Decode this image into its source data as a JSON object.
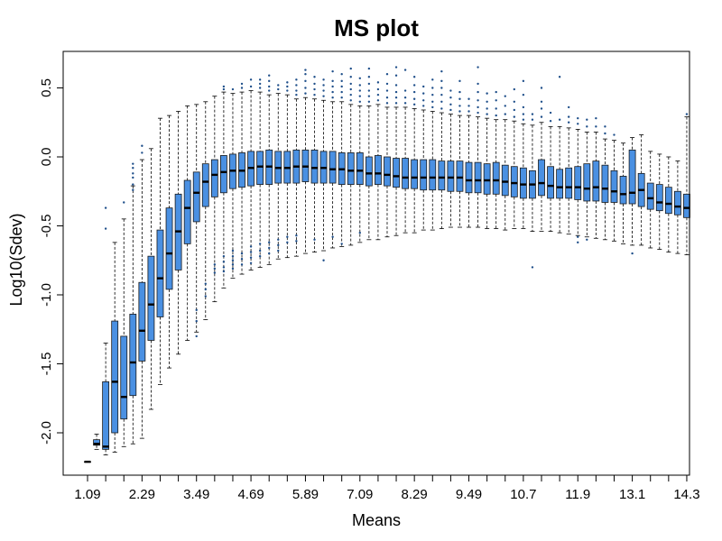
{
  "chart_data": {
    "type": "boxplot",
    "title": "MS plot",
    "xlabel": "Means",
    "ylabel": "Log10(Sdev)",
    "box_color": "#4a90e2",
    "outlier_color": "#1f4f8a",
    "ylim": [
      -2.3,
      0.75
    ],
    "yticks": [
      {
        "value": -2.0,
        "label": "-2.0"
      },
      {
        "value": -1.5,
        "label": "-1.5"
      },
      {
        "value": -1.0,
        "label": "-1.0"
      },
      {
        "value": -0.5,
        "label": "-0.5"
      },
      {
        "value": 0.0,
        "label": "0.0"
      },
      {
        "value": 0.5,
        "label": "0.5"
      }
    ],
    "xticks": [
      {
        "index": 0,
        "label": "1.09"
      },
      {
        "index": 6,
        "label": "2.29"
      },
      {
        "index": 12,
        "label": "3.49"
      },
      {
        "index": 18,
        "label": "4.69"
      },
      {
        "index": 24,
        "label": "5.89"
      },
      {
        "index": 30,
        "label": "7.09"
      },
      {
        "index": 36,
        "label": "8.29"
      },
      {
        "index": 42,
        "label": "9.49"
      },
      {
        "index": 48,
        "label": "10.7"
      },
      {
        "index": 54,
        "label": "11.9"
      },
      {
        "index": 60,
        "label": "13.1"
      },
      {
        "index": 66,
        "label": "14.3"
      }
    ],
    "boxes": [
      {
        "x": 1.09,
        "lo": -2.21,
        "q1": -2.21,
        "med": -2.21,
        "q3": -2.21,
        "hi": -2.21,
        "out": []
      },
      {
        "x": 1.29,
        "lo": -2.12,
        "q1": -2.09,
        "med": -2.08,
        "q3": -2.05,
        "hi": -2.01,
        "out": []
      },
      {
        "x": 1.49,
        "lo": -2.16,
        "q1": -2.12,
        "med": -2.1,
        "q3": -1.63,
        "hi": -1.35,
        "out": [
          -0.37,
          -0.52
        ]
      },
      {
        "x": 1.69,
        "lo": -2.14,
        "q1": -2.0,
        "med": -1.63,
        "q3": -1.19,
        "hi": -0.62,
        "out": []
      },
      {
        "x": 1.89,
        "lo": -2.1,
        "q1": -1.9,
        "med": -1.74,
        "q3": -1.3,
        "hi": -0.45,
        "out": [
          -0.33
        ]
      },
      {
        "x": 2.09,
        "lo": -2.08,
        "q1": -1.73,
        "med": -1.49,
        "q3": -1.14,
        "hi": -0.21,
        "out": [
          -0.05,
          -0.08,
          -0.12,
          -0.15,
          -0.2,
          -0.24
        ]
      },
      {
        "x": 2.29,
        "lo": -2.04,
        "q1": -1.48,
        "med": -1.26,
        "q3": -0.91,
        "hi": -0.02,
        "out": [
          0.03,
          0.08
        ]
      },
      {
        "x": 2.49,
        "lo": -1.83,
        "q1": -1.33,
        "med": -1.07,
        "q3": -0.72,
        "hi": 0.06,
        "out": []
      },
      {
        "x": 2.69,
        "lo": -1.65,
        "q1": -1.16,
        "med": -0.88,
        "q3": -0.53,
        "hi": 0.28,
        "out": []
      },
      {
        "x": 2.89,
        "lo": -1.53,
        "q1": -0.96,
        "med": -0.7,
        "q3": -0.37,
        "hi": 0.3,
        "out": []
      },
      {
        "x": 3.09,
        "lo": -1.43,
        "q1": -0.82,
        "med": -0.54,
        "q3": -0.27,
        "hi": 0.33,
        "out": []
      },
      {
        "x": 3.29,
        "lo": -1.33,
        "q1": -0.63,
        "med": -0.37,
        "q3": -0.17,
        "hi": 0.37,
        "out": []
      },
      {
        "x": 3.49,
        "lo": -1.27,
        "q1": -0.47,
        "med": -0.26,
        "q3": -0.11,
        "hi": 0.38,
        "out": [
          -1.11,
          -1.19,
          -1.3
        ]
      },
      {
        "x": 3.69,
        "lo": -1.18,
        "q1": -0.36,
        "med": -0.18,
        "q3": -0.05,
        "hi": 0.4,
        "out": [
          -0.92,
          -0.96,
          -1.01
        ]
      },
      {
        "x": 3.89,
        "lo": -1.05,
        "q1": -0.29,
        "med": -0.13,
        "q3": -0.02,
        "hi": 0.44,
        "out": [
          -0.78,
          -0.81,
          -0.84
        ]
      },
      {
        "x": 4.09,
        "lo": -0.95,
        "q1": -0.26,
        "med": -0.11,
        "q3": 0.01,
        "hi": 0.47,
        "out": [
          0.49,
          0.51,
          -0.72,
          -0.76,
          -0.8,
          -0.83
        ]
      },
      {
        "x": 4.29,
        "lo": -0.88,
        "q1": -0.23,
        "med": -0.1,
        "q3": 0.02,
        "hi": 0.46,
        "out": [
          0.49,
          -0.68,
          -0.72,
          -0.75,
          -0.78,
          -0.81
        ]
      },
      {
        "x": 4.49,
        "lo": -0.85,
        "q1": -0.22,
        "med": -0.1,
        "q3": 0.03,
        "hi": 0.47,
        "out": [
          0.5,
          0.53,
          -0.7,
          -0.74,
          -0.78
        ]
      },
      {
        "x": 4.69,
        "lo": -0.82,
        "q1": -0.21,
        "med": -0.08,
        "q3": 0.04,
        "hi": 0.48,
        "out": [
          0.51,
          0.56,
          -0.65,
          -0.69,
          -0.73,
          -0.77
        ]
      },
      {
        "x": 4.89,
        "lo": -0.8,
        "q1": -0.2,
        "med": -0.07,
        "q3": 0.04,
        "hi": 0.47,
        "out": [
          0.5,
          0.53,
          0.56,
          -0.63,
          -0.68,
          -0.72
        ]
      },
      {
        "x": 5.09,
        "lo": -0.78,
        "q1": -0.2,
        "med": -0.07,
        "q3": 0.05,
        "hi": 0.45,
        "out": [
          0.48,
          0.51,
          0.55,
          0.59,
          -0.62,
          -0.66,
          -0.7
        ]
      },
      {
        "x": 5.29,
        "lo": -0.74,
        "q1": -0.19,
        "med": -0.08,
        "q3": 0.04,
        "hi": 0.46,
        "out": [
          0.49,
          0.52,
          -0.6,
          -0.64,
          -0.68
        ]
      },
      {
        "x": 5.49,
        "lo": -0.73,
        "q1": -0.19,
        "med": -0.08,
        "q3": 0.04,
        "hi": 0.45,
        "out": [
          0.48,
          0.51,
          0.54,
          -0.58,
          -0.62
        ]
      },
      {
        "x": 5.69,
        "lo": -0.72,
        "q1": -0.19,
        "med": -0.07,
        "q3": 0.05,
        "hi": 0.42,
        "out": [
          0.45,
          0.48,
          0.52,
          0.56,
          -0.57,
          -0.61
        ]
      },
      {
        "x": 5.89,
        "lo": -0.7,
        "q1": -0.18,
        "med": -0.07,
        "q3": 0.05,
        "hi": 0.43,
        "out": [
          0.46,
          0.5,
          0.55,
          0.6,
          0.63
        ]
      },
      {
        "x": 6.09,
        "lo": -0.69,
        "q1": -0.19,
        "med": -0.08,
        "q3": 0.05,
        "hi": 0.42,
        "out": [
          0.45,
          0.49,
          0.53,
          0.58,
          -0.6
        ]
      },
      {
        "x": 6.29,
        "lo": -0.68,
        "q1": -0.19,
        "med": -0.08,
        "q3": 0.04,
        "hi": 0.41,
        "out": [
          0.44,
          0.48,
          0.52,
          0.56,
          -0.75
        ]
      },
      {
        "x": 6.49,
        "lo": -0.66,
        "q1": -0.19,
        "med": -0.09,
        "q3": 0.04,
        "hi": 0.4,
        "out": [
          0.43,
          0.47,
          0.51,
          0.55,
          0.62,
          -0.58
        ]
      },
      {
        "x": 6.69,
        "lo": -0.65,
        "q1": -0.2,
        "med": -0.09,
        "q3": 0.03,
        "hi": 0.4,
        "out": [
          0.43,
          0.47,
          0.51,
          0.55,
          0.6,
          -0.63
        ]
      },
      {
        "x": 6.89,
        "lo": -0.64,
        "q1": -0.2,
        "med": -0.1,
        "q3": 0.03,
        "hi": 0.38,
        "out": [
          0.41,
          0.45,
          0.49,
          0.53,
          0.58,
          0.64
        ]
      },
      {
        "x": 7.09,
        "lo": -0.62,
        "q1": -0.2,
        "med": -0.1,
        "q3": 0.03,
        "hi": 0.37,
        "out": [
          0.4,
          0.44,
          0.48,
          0.52,
          0.57,
          -0.55
        ]
      },
      {
        "x": 7.29,
        "lo": -0.6,
        "q1": -0.21,
        "med": -0.12,
        "q3": 0.0,
        "hi": 0.37,
        "out": [
          0.4,
          0.44,
          0.48,
          0.53,
          0.58,
          0.64
        ]
      },
      {
        "x": 7.49,
        "lo": -0.6,
        "q1": -0.2,
        "med": -0.12,
        "q3": 0.01,
        "hi": 0.38,
        "out": [
          0.41,
          0.45,
          0.49,
          0.54
        ]
      },
      {
        "x": 7.69,
        "lo": -0.58,
        "q1": -0.21,
        "med": -0.13,
        "q3": 0.0,
        "hi": 0.36,
        "out": [
          0.39,
          0.43,
          0.48,
          0.53,
          0.6
        ]
      },
      {
        "x": 7.89,
        "lo": -0.57,
        "q1": -0.22,
        "med": -0.14,
        "q3": -0.01,
        "hi": 0.36,
        "out": [
          0.39,
          0.43,
          0.47,
          0.52,
          0.59,
          0.65
        ]
      },
      {
        "x": 8.09,
        "lo": -0.55,
        "q1": -0.23,
        "med": -0.15,
        "q3": -0.01,
        "hi": 0.36,
        "out": [
          0.39,
          0.43,
          0.48,
          0.63
        ]
      },
      {
        "x": 8.29,
        "lo": -0.55,
        "q1": -0.23,
        "med": -0.15,
        "q3": -0.02,
        "hi": 0.35,
        "out": [
          0.38,
          0.42,
          0.47,
          0.52,
          0.58
        ]
      },
      {
        "x": 8.49,
        "lo": -0.53,
        "q1": -0.24,
        "med": -0.15,
        "q3": -0.02,
        "hi": 0.34,
        "out": [
          0.37,
          0.41,
          0.46,
          0.51
        ]
      },
      {
        "x": 8.69,
        "lo": -0.53,
        "q1": -0.24,
        "med": -0.15,
        "q3": -0.02,
        "hi": 0.33,
        "out": [
          0.36,
          0.4,
          0.45,
          0.5,
          0.56
        ]
      },
      {
        "x": 8.89,
        "lo": -0.52,
        "q1": -0.24,
        "med": -0.15,
        "q3": -0.03,
        "hi": 0.32,
        "out": [
          0.35,
          0.4,
          0.45,
          0.5,
          0.55,
          0.62
        ]
      },
      {
        "x": 9.09,
        "lo": -0.51,
        "q1": -0.25,
        "med": -0.15,
        "q3": -0.03,
        "hi": 0.31,
        "out": [
          0.34,
          0.38,
          0.43,
          0.48
        ]
      },
      {
        "x": 9.29,
        "lo": -0.51,
        "q1": -0.25,
        "med": -0.15,
        "q3": -0.03,
        "hi": 0.3,
        "out": [
          0.33,
          0.37,
          0.42,
          0.47,
          0.55
        ]
      },
      {
        "x": 9.49,
        "lo": -0.51,
        "q1": -0.26,
        "med": -0.17,
        "q3": -0.04,
        "hi": 0.3,
        "out": [
          0.33,
          0.37,
          0.42
        ]
      },
      {
        "x": 9.69,
        "lo": -0.51,
        "q1": -0.26,
        "med": -0.17,
        "q3": -0.04,
        "hi": 0.29,
        "out": [
          0.32,
          0.36,
          0.41,
          0.47,
          0.53,
          0.65
        ]
      },
      {
        "x": 9.89,
        "lo": -0.52,
        "q1": -0.27,
        "med": -0.17,
        "q3": -0.05,
        "hi": 0.28,
        "out": [
          0.31,
          0.35,
          0.4,
          0.46
        ]
      },
      {
        "x": 10.09,
        "lo": -0.52,
        "q1": -0.27,
        "med": -0.17,
        "q3": -0.04,
        "hi": 0.27,
        "out": [
          0.3,
          0.35,
          0.41,
          0.47
        ]
      },
      {
        "x": 10.29,
        "lo": -0.53,
        "q1": -0.28,
        "med": -0.18,
        "q3": -0.06,
        "hi": 0.27,
        "out": [
          0.31,
          0.37,
          0.44
        ]
      },
      {
        "x": 10.49,
        "lo": -0.52,
        "q1": -0.29,
        "med": -0.19,
        "q3": -0.07,
        "hi": 0.26,
        "out": [
          0.29,
          0.34,
          0.4,
          0.49
        ]
      },
      {
        "x": 10.69,
        "lo": -0.52,
        "q1": -0.3,
        "med": -0.2,
        "q3": -0.08,
        "hi": 0.24,
        "out": [
          0.27,
          0.31,
          0.36,
          0.45,
          0.55
        ]
      },
      {
        "x": 10.89,
        "lo": -0.54,
        "q1": -0.3,
        "med": -0.2,
        "q3": -0.1,
        "hi": 0.23,
        "out": [
          0.27,
          0.31,
          -0.8
        ]
      },
      {
        "x": 11.09,
        "lo": -0.54,
        "q1": -0.28,
        "med": -0.19,
        "q3": -0.02,
        "hi": 0.25,
        "out": [
          0.29,
          0.35,
          0.4,
          0.5
        ]
      },
      {
        "x": 11.29,
        "lo": -0.54,
        "q1": -0.3,
        "med": -0.21,
        "q3": -0.07,
        "hi": 0.22,
        "out": [
          0.26,
          0.32
        ]
      },
      {
        "x": 11.49,
        "lo": -0.55,
        "q1": -0.3,
        "med": -0.22,
        "q3": -0.09,
        "hi": 0.22,
        "out": [
          0.27,
          0.58
        ]
      },
      {
        "x": 11.69,
        "lo": -0.56,
        "q1": -0.3,
        "med": -0.22,
        "q3": -0.08,
        "hi": 0.21,
        "out": [
          0.25,
          0.29,
          0.36
        ]
      },
      {
        "x": 11.89,
        "lo": -0.57,
        "q1": -0.31,
        "med": -0.22,
        "q3": -0.07,
        "hi": 0.2,
        "out": [
          0.24,
          0.28,
          -0.58,
          -0.62
        ]
      },
      {
        "x": 12.09,
        "lo": -0.58,
        "q1": -0.32,
        "med": -0.23,
        "q3": -0.05,
        "hi": 0.18,
        "out": [
          0.22,
          0.27,
          -0.6
        ]
      },
      {
        "x": 12.29,
        "lo": -0.59,
        "q1": -0.32,
        "med": -0.22,
        "q3": -0.03,
        "hi": 0.18,
        "out": [
          0.22,
          0.28
        ]
      },
      {
        "x": 12.49,
        "lo": -0.6,
        "q1": -0.33,
        "med": -0.23,
        "q3": -0.06,
        "hi": 0.13,
        "out": [
          0.17,
          0.22
        ]
      },
      {
        "x": 12.69,
        "lo": -0.61,
        "q1": -0.33,
        "med": -0.25,
        "q3": -0.1,
        "hi": 0.12,
        "out": [
          0.16
        ]
      },
      {
        "x": 12.89,
        "lo": -0.63,
        "q1": -0.34,
        "med": -0.27,
        "q3": -0.14,
        "hi": 0.1,
        "out": []
      },
      {
        "x": 13.09,
        "lo": -0.64,
        "q1": -0.34,
        "med": -0.26,
        "q3": 0.05,
        "hi": 0.14,
        "out": [
          -0.7
        ]
      },
      {
        "x": 13.29,
        "lo": -0.64,
        "q1": -0.36,
        "med": -0.24,
        "q3": -0.12,
        "hi": 0.16,
        "out": []
      },
      {
        "x": 13.49,
        "lo": -0.66,
        "q1": -0.38,
        "med": -0.3,
        "q3": -0.19,
        "hi": 0.04,
        "out": []
      },
      {
        "x": 13.69,
        "lo": -0.67,
        "q1": -0.39,
        "med": -0.33,
        "q3": -0.2,
        "hi": 0.02,
        "out": []
      },
      {
        "x": 13.89,
        "lo": -0.69,
        "q1": -0.41,
        "med": -0.34,
        "q3": -0.22,
        "hi": 0.0,
        "out": []
      },
      {
        "x": 14.09,
        "lo": -0.7,
        "q1": -0.42,
        "med": -0.36,
        "q3": -0.25,
        "hi": -0.03,
        "out": []
      },
      {
        "x": 14.29,
        "lo": -0.71,
        "q1": -0.44,
        "med": -0.37,
        "q3": -0.27,
        "hi": 0.29,
        "out": [
          0.31
        ]
      }
    ]
  }
}
